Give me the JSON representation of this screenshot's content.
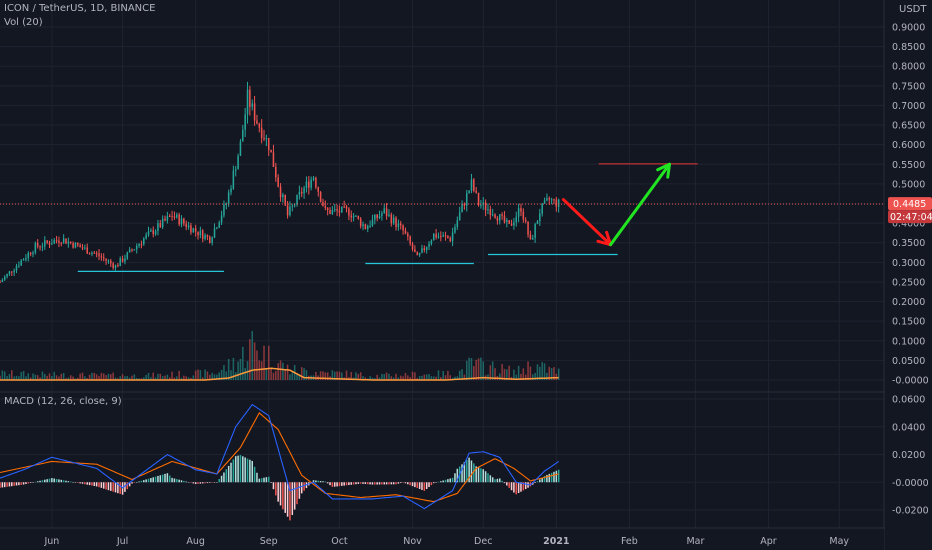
{
  "header": {
    "symbol_line": "ICON / TetherUS, 1D, BINANCE",
    "volume_label": "Vol (20)",
    "macd_label": "MACD (12, 26, close, 9)",
    "currency": "USDT"
  },
  "price_badge": {
    "price": "0.4485",
    "countdown": "02:47:04"
  },
  "colors": {
    "background": "#131722",
    "grid": "#1f2330",
    "up": "#26a69a",
    "down": "#ef5350",
    "volume_ma": "#ff9a3c",
    "macd_line": "#2962ff",
    "signal_line": "#ff6d00",
    "support_line": "#26c6da",
    "target_line": "#e53935",
    "arrow_down": "#ff1a1a",
    "arrow_up": "#22e522",
    "price_line": "#ef5350",
    "text": "#b2b5be"
  },
  "chart_data": {
    "type": "candlestick",
    "price_axis": {
      "ticks": [
        "0.9000",
        "0.8500",
        "0.8000",
        "0.7500",
        "0.7000",
        "0.6500",
        "0.6000",
        "0.5500",
        "0.5000",
        "0.4500",
        "0.4000",
        "0.3500",
        "0.3000",
        "0.2500",
        "0.2000",
        "0.1500",
        "0.1000",
        "0.0500",
        "-0.0000"
      ],
      "tick_values": [
        0.9,
        0.85,
        0.8,
        0.75,
        0.7,
        0.65,
        0.6,
        0.55,
        0.5,
        0.45,
        0.4,
        0.35,
        0.3,
        0.25,
        0.2,
        0.15,
        0.1,
        0.05,
        0.0
      ],
      "range": [
        0.0,
        0.92
      ]
    },
    "macd_axis": {
      "ticks": [
        "0.0600",
        "0.0400",
        "0.0200",
        "-0.0000",
        "-0.0200"
      ],
      "tick_values": [
        0.06,
        0.04,
        0.02,
        0.0,
        -0.02
      ],
      "range": [
        -0.028,
        0.062
      ]
    },
    "time_axis": {
      "labels": [
        "Jun",
        "Jul",
        "Aug",
        "Sep",
        "Oct",
        "Nov",
        "Dec",
        "2021",
        "Feb",
        "Mar",
        "Apr",
        "May"
      ],
      "dates": [
        "2020-06-01",
        "2020-07-01",
        "2020-08-01",
        "2020-09-01",
        "2020-10-01",
        "2020-11-01",
        "2020-12-01",
        "2021-01-01",
        "2021-02-01",
        "2021-03-01",
        "2021-04-01",
        "2021-05-01"
      ],
      "start": "2020-05-10",
      "end": "2021-05-20"
    },
    "price_anchors": [
      [
        "2020-05-10",
        0.25
      ],
      [
        "2020-05-25",
        0.34
      ],
      [
        "2020-06-05",
        0.36
      ],
      [
        "2020-06-20",
        0.32
      ],
      [
        "2020-06-28",
        0.29
      ],
      [
        "2020-07-10",
        0.36
      ],
      [
        "2020-07-22",
        0.42
      ],
      [
        "2020-08-01",
        0.38
      ],
      [
        "2020-08-07",
        0.36
      ],
      [
        "2020-08-14",
        0.45
      ],
      [
        "2020-08-20",
        0.6
      ],
      [
        "2020-08-23",
        0.72
      ],
      [
        "2020-08-27",
        0.66
      ],
      [
        "2020-09-01",
        0.6
      ],
      [
        "2020-09-05",
        0.5
      ],
      [
        "2020-09-09",
        0.42
      ],
      [
        "2020-09-15",
        0.48
      ],
      [
        "2020-09-20",
        0.52
      ],
      [
        "2020-09-25",
        0.43
      ],
      [
        "2020-10-05",
        0.43
      ],
      [
        "2020-10-12",
        0.39
      ],
      [
        "2020-10-20",
        0.43
      ],
      [
        "2020-10-28",
        0.38
      ],
      [
        "2020-11-03",
        0.31
      ],
      [
        "2020-11-10",
        0.37
      ],
      [
        "2020-11-17",
        0.36
      ],
      [
        "2020-11-22",
        0.44
      ],
      [
        "2020-11-26",
        0.5
      ],
      [
        "2020-11-29",
        0.45
      ],
      [
        "2020-12-05",
        0.43
      ],
      [
        "2020-12-12",
        0.39
      ],
      [
        "2020-12-17",
        0.44
      ],
      [
        "2020-12-21",
        0.35
      ],
      [
        "2020-12-25",
        0.43
      ],
      [
        "2020-12-29",
        0.46
      ],
      [
        "2021-01-02",
        0.4485
      ]
    ],
    "volume_anchors": [
      [
        "2020-05-10",
        0.018
      ],
      [
        "2020-06-01",
        0.014
      ],
      [
        "2020-07-10",
        0.012
      ],
      [
        "2020-08-10",
        0.02
      ],
      [
        "2020-08-20",
        0.06
      ],
      [
        "2020-08-25",
        0.1
      ],
      [
        "2020-09-02",
        0.06
      ],
      [
        "2020-09-10",
        0.028
      ],
      [
        "2020-10-15",
        0.012
      ],
      [
        "2020-11-20",
        0.018
      ],
      [
        "2020-11-26",
        0.045
      ],
      [
        "2020-12-15",
        0.022
      ],
      [
        "2020-12-21",
        0.04
      ],
      [
        "2021-01-02",
        0.024
      ]
    ],
    "volume_ma_anchors": [
      [
        "2020-05-10",
        0.0
      ],
      [
        "2020-06-01",
        0.0
      ],
      [
        "2020-07-01",
        0.0
      ],
      [
        "2020-08-05",
        0.0
      ],
      [
        "2020-08-15",
        0.005
      ],
      [
        "2020-08-25",
        0.025
      ],
      [
        "2020-09-02",
        0.03
      ],
      [
        "2020-09-10",
        0.025
      ],
      [
        "2020-09-16",
        0.006
      ],
      [
        "2020-10-15",
        0.0
      ],
      [
        "2020-11-15",
        0.0
      ],
      [
        "2020-12-01",
        0.006
      ],
      [
        "2020-12-15",
        0.002
      ],
      [
        "2021-01-02",
        0.006
      ]
    ],
    "macd_anchors": [
      [
        "2020-05-10",
        0.003
      ],
      [
        "2020-05-20",
        0.009
      ],
      [
        "2020-06-01",
        0.018
      ],
      [
        "2020-06-20",
        0.01
      ],
      [
        "2020-07-01",
        -0.004
      ],
      [
        "2020-07-20",
        0.02
      ],
      [
        "2020-08-01",
        0.009
      ],
      [
        "2020-08-10",
        0.006
      ],
      [
        "2020-08-18",
        0.04
      ],
      [
        "2020-08-25",
        0.056
      ],
      [
        "2020-09-01",
        0.048
      ],
      [
        "2020-09-10",
        -0.006
      ],
      [
        "2020-09-20",
        0.0
      ],
      [
        "2020-09-28",
        -0.012
      ],
      [
        "2020-10-15",
        -0.012
      ],
      [
        "2020-10-28",
        -0.01
      ],
      [
        "2020-11-06",
        -0.019
      ],
      [
        "2020-11-18",
        -0.006
      ],
      [
        "2020-11-25",
        0.021
      ],
      [
        "2020-12-01",
        0.022
      ],
      [
        "2020-12-08",
        0.018
      ],
      [
        "2020-12-15",
        0.0
      ],
      [
        "2020-12-21",
        -0.002
      ],
      [
        "2020-12-27",
        0.008
      ],
      [
        "2021-01-02",
        0.015
      ]
    ],
    "signal_anchors": [
      [
        "2020-05-10",
        0.007
      ],
      [
        "2020-06-01",
        0.015
      ],
      [
        "2020-06-20",
        0.013
      ],
      [
        "2020-07-05",
        0.002
      ],
      [
        "2020-07-22",
        0.015
      ],
      [
        "2020-08-10",
        0.006
      ],
      [
        "2020-08-20",
        0.025
      ],
      [
        "2020-08-28",
        0.05
      ],
      [
        "2020-09-05",
        0.038
      ],
      [
        "2020-09-15",
        0.005
      ],
      [
        "2020-09-25",
        -0.008
      ],
      [
        "2020-10-10",
        -0.011
      ],
      [
        "2020-10-25",
        -0.009
      ],
      [
        "2020-11-10",
        -0.014
      ],
      [
        "2020-11-20",
        -0.008
      ],
      [
        "2020-11-28",
        0.01
      ],
      [
        "2020-12-06",
        0.017
      ],
      [
        "2020-12-14",
        0.01
      ],
      [
        "2020-12-21",
        0.001
      ],
      [
        "2021-01-02",
        0.006
      ]
    ],
    "annotations": {
      "support_lines": [
        {
          "from": "2020-06-12",
          "to": "2020-08-13",
          "value": 0.277
        },
        {
          "from": "2020-10-12",
          "to": "2020-11-27",
          "value": 0.297
        },
        {
          "from": "2020-12-03",
          "to": "2021-01-27",
          "value": 0.32
        }
      ],
      "target_line": {
        "from": "2021-01-19",
        "to": "2021-03-02",
        "value": 0.551
      },
      "current_price_line": {
        "value": 0.4485
      },
      "arrow_down": {
        "from": [
          "2021-01-04",
          0.46
        ],
        "to": [
          "2021-01-24",
          0.345
        ]
      },
      "arrow_up": {
        "from": [
          "2021-01-24",
          0.345
        ],
        "to": [
          "2021-02-18",
          0.55
        ]
      }
    }
  }
}
